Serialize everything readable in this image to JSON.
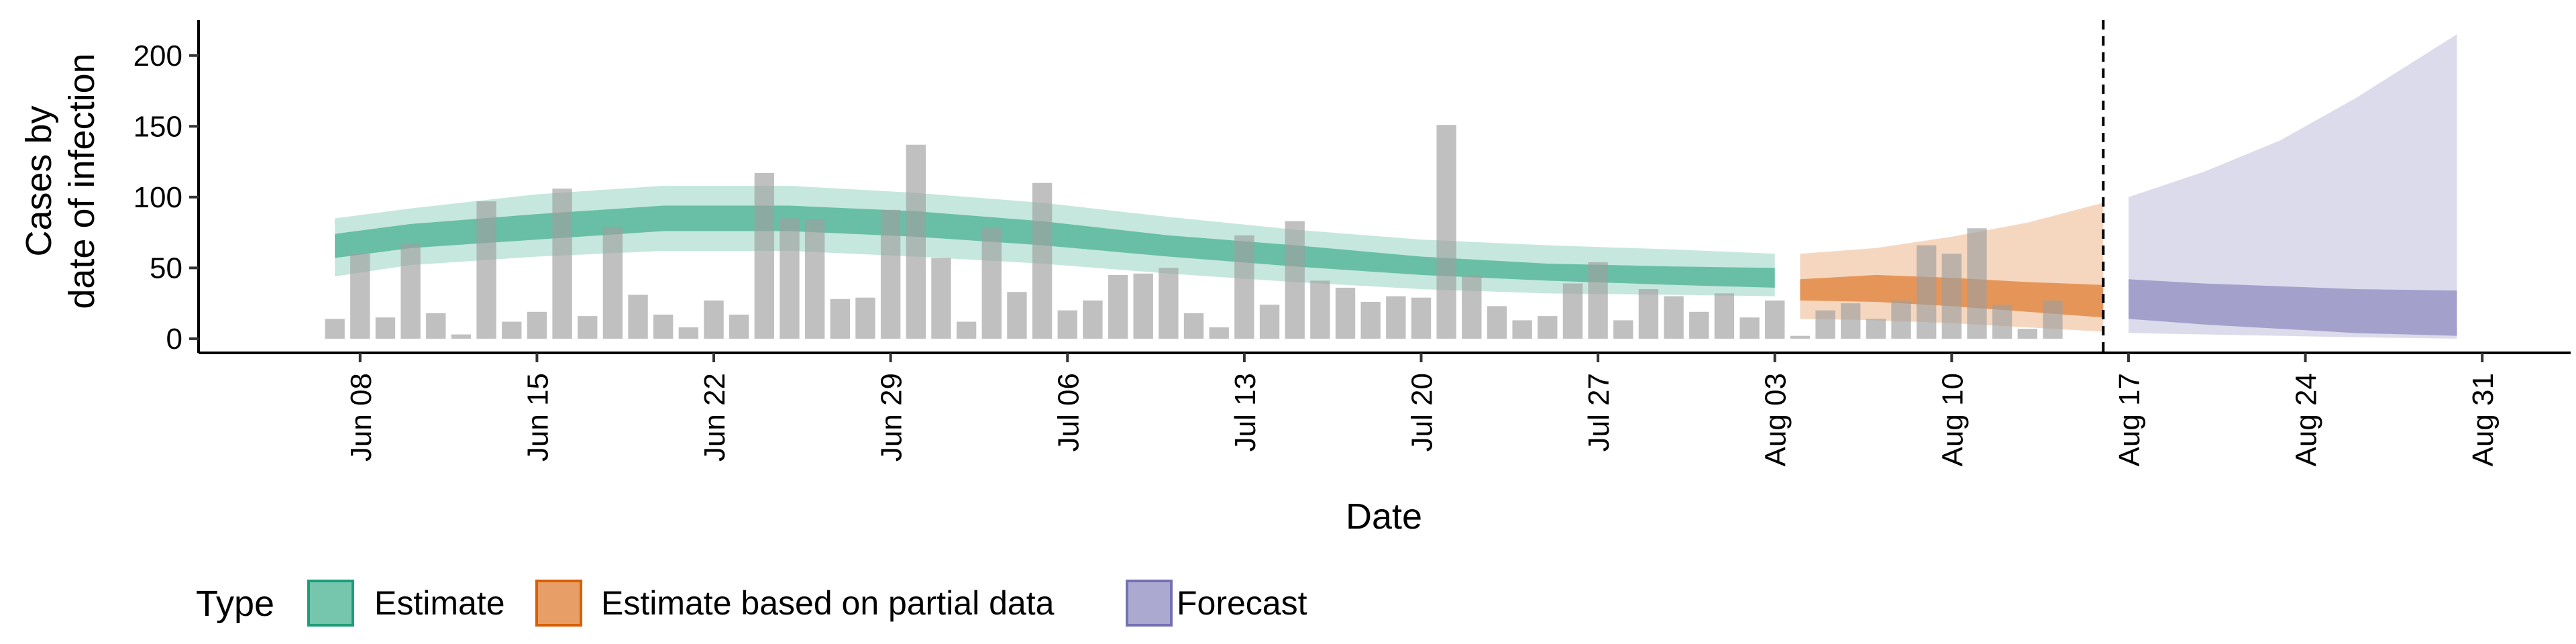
{
  "chart_data": {
    "type": "bar",
    "xlabel": "Date",
    "ylabel_lines": [
      "Cases by",
      "date of infection"
    ],
    "ylim": [
      -10,
      225
    ],
    "y_ticks": [
      0,
      50,
      100,
      150,
      200
    ],
    "x_ticks": [
      {
        "day": 8,
        "label": "Jun 08"
      },
      {
        "day": 15,
        "label": "Jun 15"
      },
      {
        "day": 22,
        "label": "Jun 22"
      },
      {
        "day": 29,
        "label": "Jun 29"
      },
      {
        "day": 36,
        "label": "Jul 06"
      },
      {
        "day": 43,
        "label": "Jul 13"
      },
      {
        "day": 50,
        "label": "Jul 20"
      },
      {
        "day": 57,
        "label": "Jul 27"
      },
      {
        "day": 64,
        "label": "Aug 03"
      },
      {
        "day": 71,
        "label": "Aug 10"
      },
      {
        "day": 78,
        "label": "Aug 17"
      },
      {
        "day": 85,
        "label": "Aug 24"
      },
      {
        "day": 92,
        "label": "Aug 31"
      }
    ],
    "x_range_day": [
      1.5,
      95.5
    ],
    "reported_cases": {
      "start_day": 7,
      "values": [
        14,
        60,
        15,
        67,
        18,
        3,
        97,
        12,
        19,
        106,
        16,
        79,
        31,
        17,
        8,
        27,
        17,
        117,
        85,
        84,
        28,
        29,
        91,
        137,
        57,
        12,
        78,
        33,
        110,
        20,
        27,
        45,
        46,
        50,
        18,
        8,
        73,
        24,
        83,
        41,
        36,
        26,
        30,
        29,
        151,
        45,
        23,
        13,
        16,
        39,
        54,
        13,
        35,
        30,
        19,
        32,
        15,
        27,
        2,
        20,
        25,
        14,
        27,
        66,
        60,
        78,
        24,
        7,
        27
      ]
    },
    "vertical_marker_day": 77,
    "legend_title": "Type",
    "series": [
      {
        "name": "Estimate",
        "color": "#1B9E77",
        "start_day": 7,
        "end_day": 64,
        "days": [
          7,
          10,
          15,
          20,
          25,
          30,
          35,
          40,
          45,
          50,
          55,
          60,
          64
        ],
        "outer_low": [
          44,
          52,
          58,
          62,
          62,
          58,
          53,
          46,
          40,
          35,
          32,
          31,
          30
        ],
        "outer_high": [
          85,
          92,
          102,
          108,
          108,
          103,
          96,
          86,
          77,
          70,
          66,
          63,
          60
        ],
        "inner_low": [
          57,
          64,
          70,
          76,
          76,
          72,
          66,
          58,
          51,
          45,
          41,
          38,
          36
        ],
        "inner_high": [
          74,
          81,
          88,
          94,
          94,
          90,
          83,
          73,
          66,
          58,
          53,
          51,
          50
        ]
      },
      {
        "name": "Estimate based on partial data",
        "color": "#D95F02",
        "start_day": 65,
        "end_day": 77,
        "days": [
          65,
          68,
          71,
          74,
          77
        ],
        "outer_low": [
          14,
          13,
          11,
          8,
          5
        ],
        "outer_high": [
          60,
          64,
          72,
          82,
          96
        ],
        "inner_low": [
          27,
          26,
          23,
          19,
          15
        ],
        "inner_high": [
          42,
          45,
          43,
          40,
          38
        ]
      },
      {
        "name": "Forecast",
        "color": "#7570B3",
        "start_day": 78,
        "end_day": 91,
        "days": [
          78,
          81,
          84,
          87,
          91
        ],
        "outer_low": [
          4,
          3,
          2,
          1,
          0
        ],
        "outer_high": [
          100,
          118,
          140,
          170,
          215
        ],
        "inner_low": [
          14,
          10,
          7,
          4,
          2
        ],
        "inner_high": [
          42,
          39,
          37,
          35,
          34
        ]
      }
    ]
  }
}
